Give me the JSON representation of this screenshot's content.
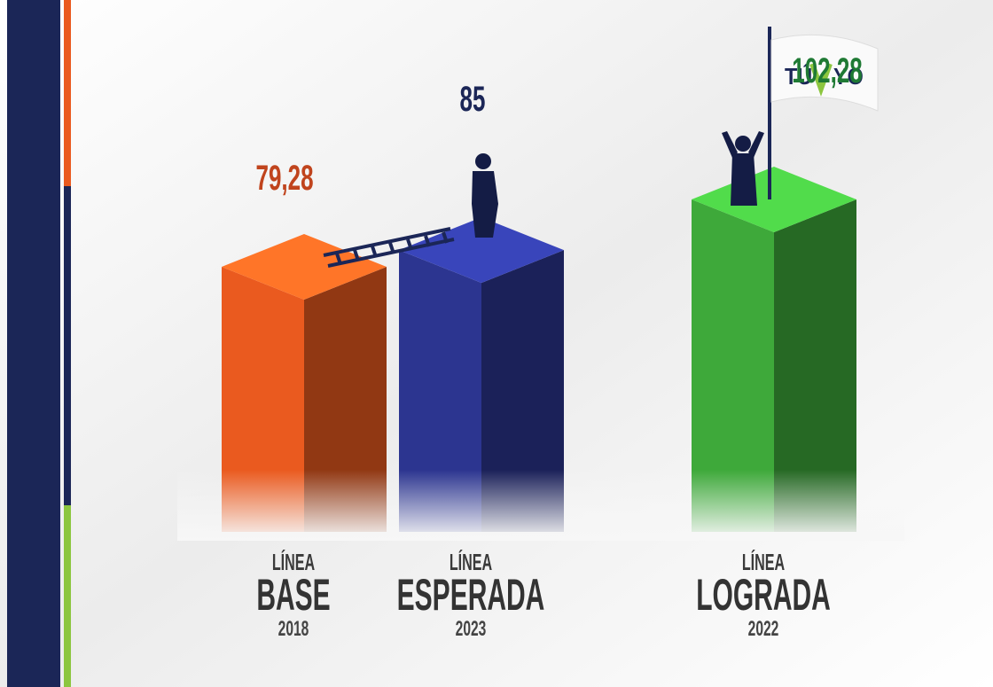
{
  "chart_data": {
    "type": "bar3d",
    "category_titles": [
      "LÍNEA",
      "LÍNEA",
      "LÍNEA"
    ],
    "categories": [
      "BASE",
      "ESPERADA",
      "LOGRADA"
    ],
    "years": [
      "2018",
      "2023",
      "2022"
    ],
    "values": [
      79.28,
      85,
      102.28
    ],
    "value_labels": [
      "79,28",
      "85",
      "102,28"
    ],
    "colors": [
      "#ea5a1f",
      "#2c3590",
      "#3ea93a"
    ],
    "logo": [
      "TÚ",
      "YO"
    ]
  }
}
